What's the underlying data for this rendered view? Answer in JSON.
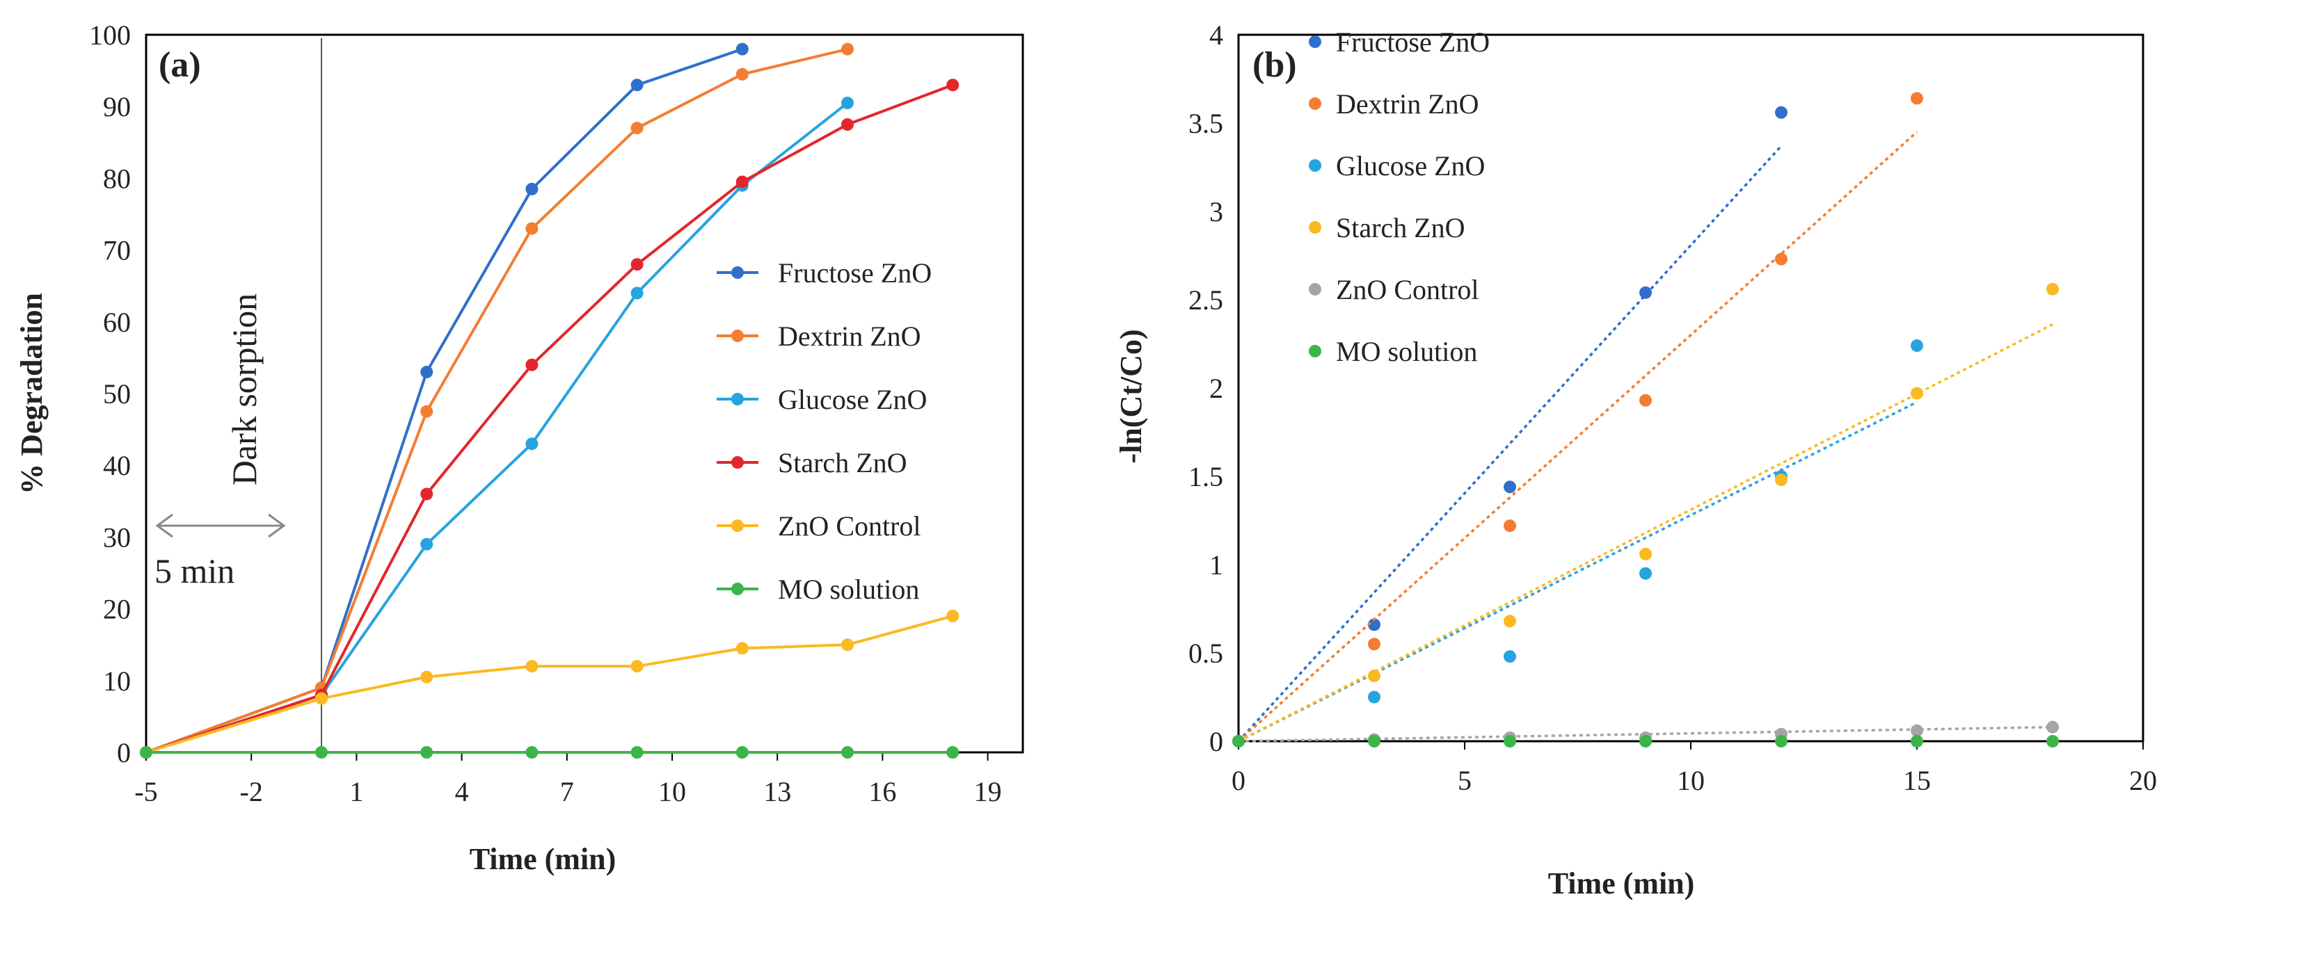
{
  "chart_data": [
    {
      "type": "line",
      "panel_label": "(a)",
      "xlabel": "Time (min)",
      "ylabel": "% Degradation",
      "xlim": [
        -5,
        20
      ],
      "ylim": [
        0,
        100
      ],
      "xticks": [
        -5,
        -2,
        1,
        4,
        7,
        10,
        13,
        16,
        19
      ],
      "yticks": [
        0,
        10,
        20,
        30,
        40,
        50,
        60,
        70,
        80,
        90,
        100
      ],
      "legend_position": "right-middle",
      "annotations": {
        "dark_sorption": "Dark sorption",
        "duration": "5 min"
      },
      "series": [
        {
          "name": "Fructose ZnO",
          "color": "#2f6fcb",
          "x": [
            -5,
            0,
            3,
            6,
            9,
            12
          ],
          "y": [
            0,
            9,
            53,
            78.5,
            93,
            98
          ]
        },
        {
          "name": "Dextrin ZnO",
          "color": "#f37d31",
          "x": [
            -5,
            0,
            3,
            6,
            9,
            12,
            15
          ],
          "y": [
            0,
            9,
            47.5,
            73,
            87,
            94.5,
            98
          ]
        },
        {
          "name": "Glucose ZnO",
          "color": "#27a3e0",
          "x": [
            -5,
            0,
            3,
            6,
            9,
            12,
            15
          ],
          "y": [
            0,
            8,
            29,
            43,
            64,
            79,
            90.5
          ]
        },
        {
          "name": "Starch ZnO",
          "color": "#e3262b",
          "x": [
            -5,
            0,
            3,
            6,
            9,
            12,
            15,
            18
          ],
          "y": [
            0,
            8,
            36,
            54,
            68,
            79.5,
            87.5,
            93
          ]
        },
        {
          "name": "ZnO Control",
          "color": "#fbb921",
          "x": [
            -5,
            0,
            3,
            6,
            9,
            12,
            15,
            18
          ],
          "y": [
            0,
            7.5,
            10.5,
            12,
            12,
            14.5,
            15,
            19
          ]
        },
        {
          "name": "MO solution",
          "color": "#3bb54a",
          "x": [
            -5,
            0,
            3,
            6,
            9,
            12,
            15,
            18
          ],
          "y": [
            0,
            0,
            0,
            0,
            0,
            0,
            0,
            0
          ]
        }
      ]
    },
    {
      "type": "scatter",
      "panel_label": "(b)",
      "xlabel": "Time (min)",
      "ylabel": "-ln(Ct/Co)",
      "xlim": [
        0,
        20
      ],
      "ylim": [
        0,
        4
      ],
      "xticks": [
        0,
        5,
        10,
        15,
        20
      ],
      "yticks": [
        0,
        0.5,
        1,
        1.5,
        2,
        2.5,
        3,
        3.5,
        4
      ],
      "legend_position": "top-left",
      "series": [
        {
          "name": "Fructose ZnO",
          "color": "#2f6fcb",
          "x": [
            0,
            3,
            6,
            9,
            12
          ],
          "y": [
            0,
            0.66,
            1.44,
            2.54,
            3.56
          ],
          "trend": [
            [
              0,
              0
            ],
            [
              12,
              3.37
            ]
          ]
        },
        {
          "name": "Dextrin ZnO",
          "color": "#f37d31",
          "x": [
            0,
            3,
            6,
            9,
            12,
            15
          ],
          "y": [
            0,
            0.55,
            1.22,
            1.93,
            2.73,
            3.64
          ],
          "trend": [
            [
              0,
              0
            ],
            [
              15,
              3.45
            ]
          ]
        },
        {
          "name": "Glucose ZnO",
          "color": "#27a3e0",
          "x": [
            0,
            3,
            6,
            9,
            12,
            15
          ],
          "y": [
            0,
            0.25,
            0.48,
            0.95,
            1.5,
            2.24
          ],
          "trend": [
            [
              0,
              0
            ],
            [
              15,
              1.92
            ]
          ]
        },
        {
          "name": "Starch ZnO",
          "color": "#fbb921",
          "x": [
            0,
            3,
            6,
            9,
            12,
            15,
            18
          ],
          "y": [
            0,
            0.37,
            0.68,
            1.06,
            1.48,
            1.97,
            2.56
          ],
          "trend": [
            [
              0,
              0
            ],
            [
              18,
              2.36
            ]
          ]
        },
        {
          "name": "ZnO Control",
          "color": "#a5a5a5",
          "x": [
            0,
            3,
            6,
            9,
            12,
            15,
            18
          ],
          "y": [
            0,
            0.01,
            0.02,
            0.02,
            0.04,
            0.06,
            0.08
          ],
          "trend": [
            [
              0,
              0
            ],
            [
              18,
              0.08
            ]
          ]
        },
        {
          "name": "MO solution",
          "color": "#3bb54a",
          "x": [
            0,
            3,
            6,
            9,
            12,
            15,
            18
          ],
          "y": [
            0,
            0,
            0,
            0,
            0,
            0,
            0
          ],
          "trend": null
        }
      ]
    }
  ]
}
